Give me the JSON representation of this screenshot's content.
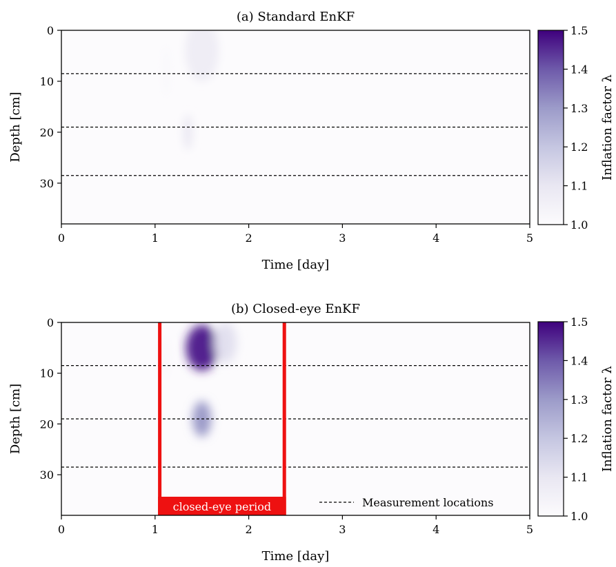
{
  "chart_data": [
    {
      "type": "heatmap",
      "title": "(a) Standard EnKF",
      "xlabel": "Time [day]",
      "ylabel": "Depth [cm]",
      "xlim": [
        0,
        5
      ],
      "ylim": [
        38,
        0
      ],
      "x_ticks": [
        "0",
        "1",
        "2",
        "3",
        "4",
        "5"
      ],
      "y_ticks": [
        "0",
        "10",
        "20",
        "30"
      ],
      "colorbar": {
        "label": "Inflation factor λ",
        "range": [
          1.0,
          1.5
        ],
        "ticks": [
          "1.0",
          "1.1",
          "1.2",
          "1.3",
          "1.4",
          "1.5"
        ],
        "colormap": "Purples",
        "color_low": "#fcfbfd",
        "color_high": "#3f007d"
      },
      "measurement_depths_cm": [
        8.5,
        19,
        28.5
      ],
      "inflation_blobs": [
        {
          "time_day": 1.5,
          "depth_cm": 4,
          "time_spread": 0.18,
          "depth_spread": 6,
          "peak_lambda": 1.07
        },
        {
          "time_day": 1.35,
          "depth_cm": 20,
          "time_spread": 0.05,
          "depth_spread": 3.5,
          "peak_lambda": 1.09
        },
        {
          "time_day": 1.12,
          "depth_cm": 8,
          "time_spread": 0.03,
          "depth_spread": 5,
          "peak_lambda": 1.02
        }
      ],
      "grid": false
    },
    {
      "type": "heatmap",
      "title": "(b) Closed-eye EnKF",
      "xlabel": "Time [day]",
      "ylabel": "Depth [cm]",
      "xlim": [
        0,
        5
      ],
      "ylim": [
        38,
        0
      ],
      "x_ticks": [
        "0",
        "1",
        "2",
        "3",
        "4",
        "5"
      ],
      "y_ticks": [
        "0",
        "10",
        "20",
        "30"
      ],
      "colorbar": {
        "label": "Inflation factor λ",
        "range": [
          1.0,
          1.5
        ],
        "ticks": [
          "1.0",
          "1.1",
          "1.2",
          "1.3",
          "1.4",
          "1.5"
        ],
        "colormap": "Purples",
        "color_low": "#fcfbfd",
        "color_high": "#3f007d"
      },
      "measurement_depths_cm": [
        8.5,
        19,
        28.5
      ],
      "inflation_blobs": [
        {
          "time_day": 1.5,
          "depth_cm": 5,
          "time_spread": 0.17,
          "depth_spread": 4.5,
          "peak_lambda": 1.46
        },
        {
          "time_day": 1.5,
          "depth_cm": 19,
          "time_spread": 0.1,
          "depth_spread": 3.5,
          "peak_lambda": 1.3
        },
        {
          "time_day": 1.75,
          "depth_cm": 4,
          "time_spread": 0.12,
          "depth_spread": 4,
          "peak_lambda": 1.12
        },
        {
          "time_day": 1.1,
          "depth_cm": 7,
          "time_spread": 0.03,
          "depth_spread": 4,
          "peak_lambda": 1.03
        }
      ],
      "closed_eye_period": {
        "start_day": 1.05,
        "end_day": 2.38,
        "label": "closed-eye period",
        "color": "#ee1111"
      },
      "legend": {
        "entries": [
          "Measurement locations"
        ],
        "position": "lower-right"
      },
      "grid": false
    }
  ]
}
